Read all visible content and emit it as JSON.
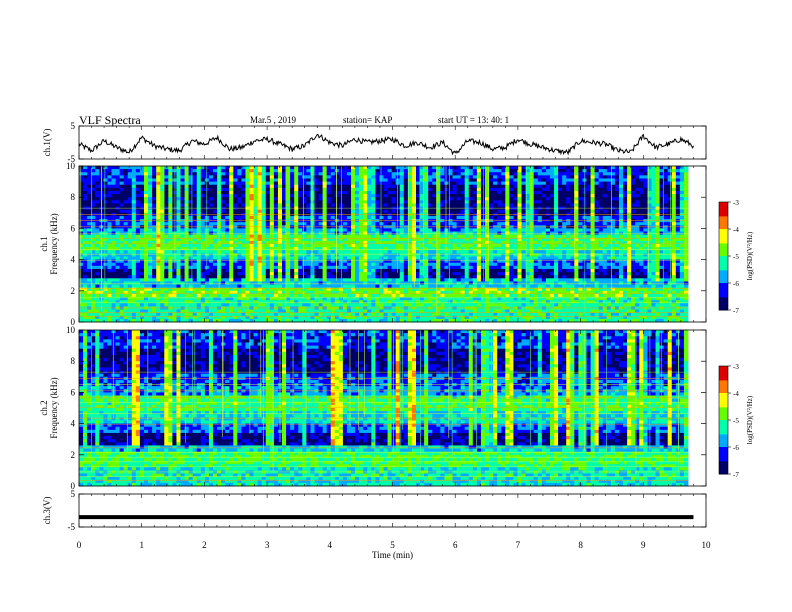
{
  "header": {
    "title": "VLF Spectra",
    "date": "Mar.5 , 2019",
    "station": "station= KAP",
    "start": "start UT = 13: 40: 1"
  },
  "chart_data": [
    {
      "type": "line",
      "name": "waveform-ch1",
      "ylabel": "ch.1(V)",
      "ylim": [
        -5,
        5
      ],
      "yticks": [
        "5",
        "-5"
      ],
      "xlim": [
        0,
        10
      ],
      "x": [
        0,
        0.2,
        0.4,
        0.6,
        0.8,
        1.0,
        1.2,
        1.4,
        1.6,
        1.8,
        2.0,
        2.2,
        2.4,
        2.6,
        2.8,
        3.0,
        3.2,
        3.4,
        3.6,
        3.8,
        4.0,
        4.2,
        4.4,
        4.6,
        4.8,
        5.0,
        5.2,
        5.4,
        5.6,
        5.8,
        6.0,
        6.2,
        6.4,
        6.6,
        6.8,
        7.0,
        7.2,
        7.4,
        7.6,
        7.8,
        8.0,
        8.2,
        8.4,
        8.6,
        8.8,
        9.0,
        9.2,
        9.4,
        9.6,
        9.8
      ],
      "y": [
        -0.5,
        -2.5,
        0.5,
        -1.5,
        -3.0,
        1.5,
        -1.0,
        -2.0,
        -2.5,
        0.5,
        -0.5,
        1.5,
        -2.0,
        -1.5,
        0.5,
        1.0,
        -0.5,
        -2.0,
        -1.0,
        2.5,
        0.0,
        -1.0,
        1.0,
        0.0,
        0.5,
        1.0,
        -1.0,
        0.0,
        -1.5,
        0.0,
        -3.5,
        0.5,
        0.0,
        -2.0,
        -1.5,
        1.0,
        -0.5,
        -1.5,
        -2.5,
        -3.0,
        0.5,
        0.0,
        -0.5,
        -2.5,
        -3.0,
        2.0,
        -1.5,
        -0.5,
        1.0,
        -1.0
      ]
    },
    {
      "type": "heatmap",
      "name": "spectrogram-ch1",
      "ylabel": "ch.1 Frequency (kHz)",
      "ylim": [
        0,
        10
      ],
      "yticks": [
        "0",
        "2",
        "4",
        "6",
        "8",
        "10"
      ],
      "xlim": [
        0,
        9.8
      ],
      "colorbar": {
        "label": "log(PSD)(V²/Hz)",
        "ticks": [
          "-3",
          "-4",
          "-5",
          "-6",
          "-7"
        ],
        "range": [
          -7,
          -3
        ]
      }
    },
    {
      "type": "heatmap",
      "name": "spectrogram-ch2",
      "ylabel": "ch.2 Frequency (kHz)",
      "ylim": [
        0,
        10
      ],
      "yticks": [
        "0",
        "2",
        "4",
        "6",
        "8",
        "10"
      ],
      "xlim": [
        0,
        9.8
      ],
      "colorbar": {
        "label": "log(PSD)(V²/Hz)",
        "ticks": [
          "-3",
          "-4",
          "-5",
          "-6",
          "-7"
        ],
        "range": [
          -7,
          -3
        ]
      }
    },
    {
      "type": "line",
      "name": "waveform-ch3",
      "ylabel": "ch.3(V)",
      "ylim": [
        -5,
        5
      ],
      "yticks": [
        "5",
        "-5"
      ],
      "xlim": [
        0,
        10
      ],
      "x": [
        0,
        9.8
      ],
      "y": [
        -2.0,
        -2.0
      ]
    }
  ],
  "xaxis": {
    "label": "Time (min)",
    "ticks": [
      "0",
      "1",
      "2",
      "3",
      "4",
      "5",
      "6",
      "7",
      "8",
      "9",
      "10"
    ]
  },
  "colors": {
    "colormap": [
      "#000066",
      "#0000ff",
      "#00aaff",
      "#00ffaa",
      "#66ff00",
      "#ffff00",
      "#ff7700",
      "#dd0000"
    ]
  }
}
